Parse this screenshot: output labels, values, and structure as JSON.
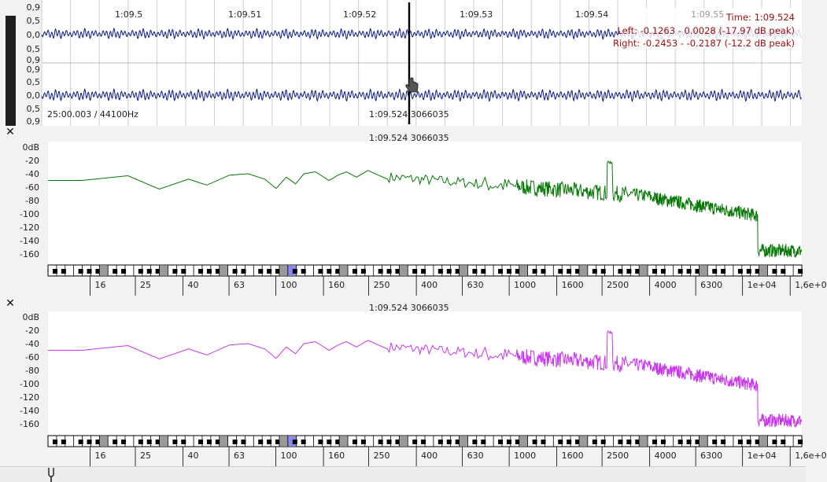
{
  "waveform": {
    "time_ticks": [
      "1:09.5",
      "1:09.51",
      "1:09.52",
      "1:09.53",
      "1:09.54",
      "1:09.55"
    ],
    "amp_labels": [
      "0,9",
      "0,5",
      "0,0",
      "0,5",
      "0,9"
    ],
    "position_info": "25:00.003 / 44100Hz",
    "cursor_label": "1:09.524  3066035",
    "readout": {
      "time": "Time: 1:09.524",
      "left": "Left: -0.1263 - 0.0028 (-17.97 dB peak)",
      "right": "Right: -0.2453 - -0.2187 (-12.2 dB peak)"
    },
    "colors": {
      "wave": "#0a1a8a",
      "cursor": "#000000",
      "readout": "#a01010"
    }
  },
  "spectrum_top": {
    "header": "1:09.524  3066035",
    "db_labels": [
      "0dB",
      "-20",
      "-40",
      "-60",
      "-80",
      "-100",
      "-120",
      "-140",
      "-160"
    ],
    "freq_labels": [
      "16",
      "25",
      "40",
      "63",
      "100",
      "160",
      "250",
      "400",
      "630",
      "1000",
      "1600",
      "2500",
      "4000",
      "6300",
      "1e+04",
      "1,6e+0"
    ],
    "color": "#067806"
  },
  "spectrum_bottom": {
    "header": "1:09.524  3066035",
    "db_labels": [
      "0dB",
      "-20",
      "-40",
      "-60",
      "-80",
      "-100",
      "-120",
      "-140",
      "-160"
    ],
    "freq_labels": [
      "16",
      "25",
      "40",
      "63",
      "100",
      "160",
      "250",
      "400",
      "630",
      "1000",
      "1600",
      "2500",
      "4000",
      "6300",
      "1e+04",
      "1,6e+0"
    ],
    "color": "#c935ee"
  },
  "icons": {
    "close": "close-icon",
    "cursor": "hand-cursor-icon",
    "tuning": "tuning-fork-icon"
  },
  "close_glyph": "✕"
}
